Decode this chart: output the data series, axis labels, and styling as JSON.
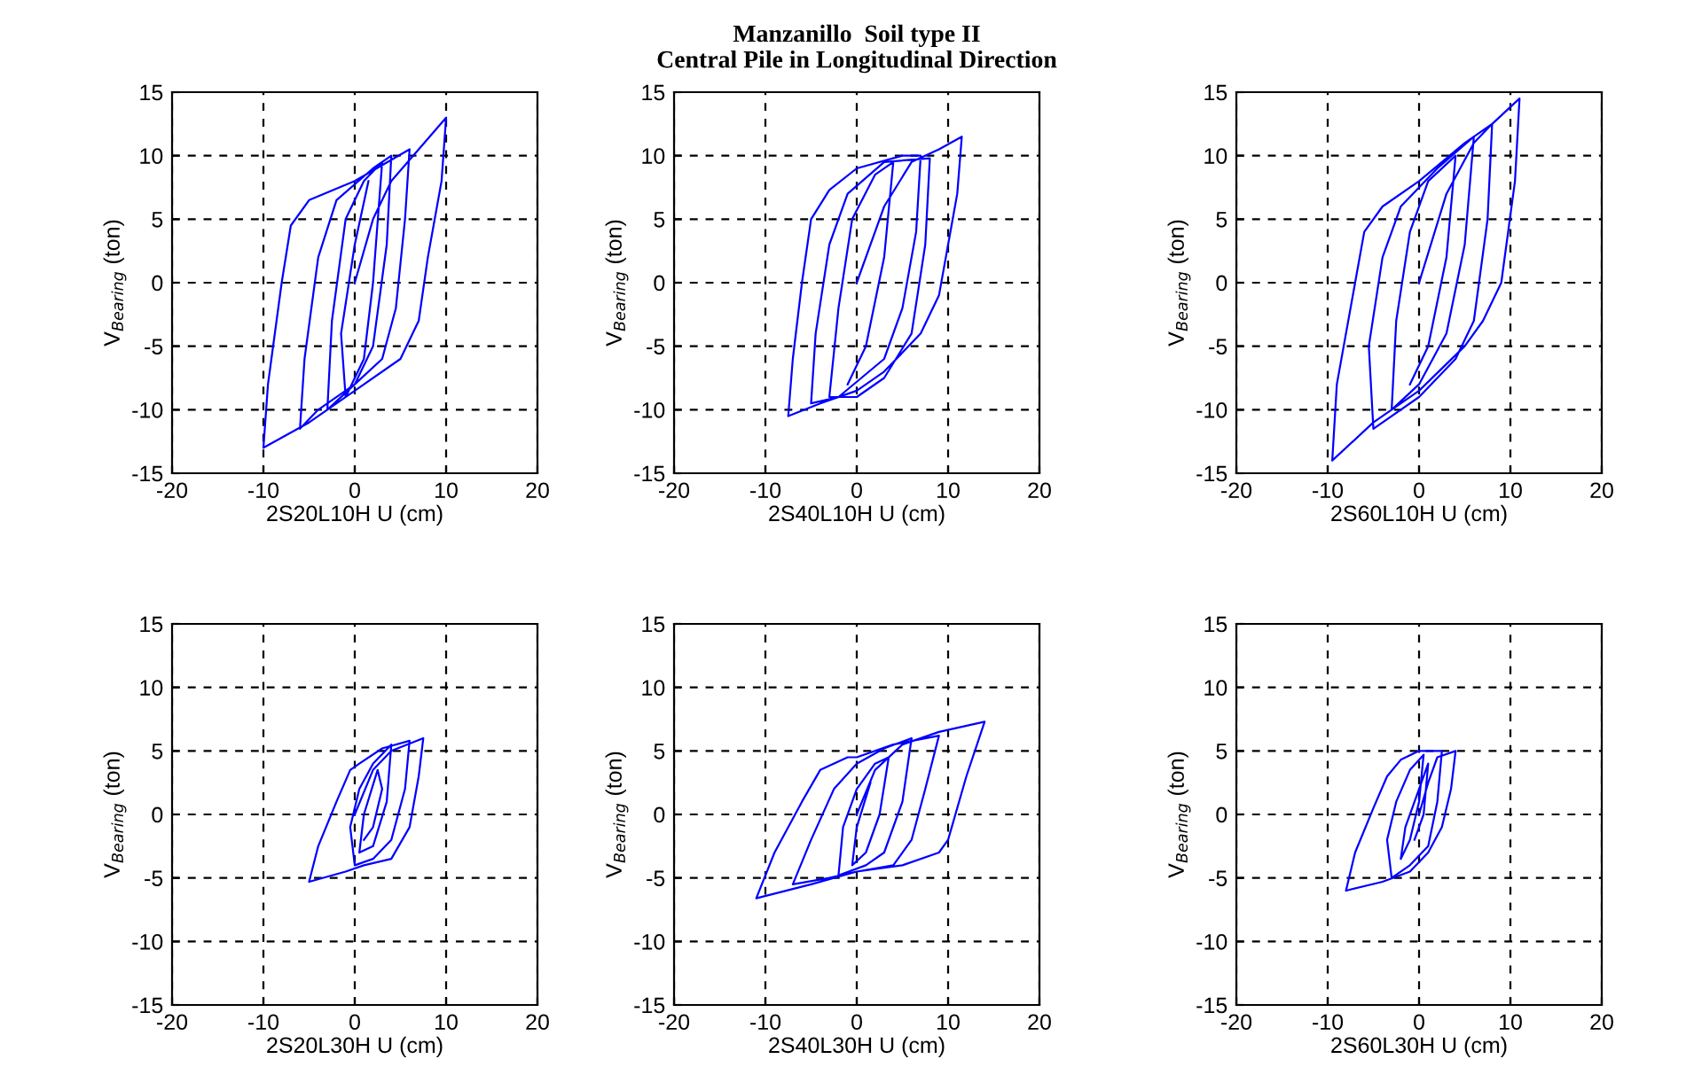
{
  "chart_data": [
    {
      "type": "line",
      "xlabel": "2S20L10H U (cm)",
      "ylabel": "V$_{Bearing}$ (ton)",
      "xlim": [
        -20,
        20
      ],
      "ylim": [
        -15,
        15
      ],
      "xticks": [
        -20,
        -10,
        0,
        10,
        20
      ],
      "yticks": [
        -15,
        -10,
        -5,
        0,
        5,
        10,
        15
      ],
      "grid": true,
      "series": [
        {
          "color": "#0000ff",
          "x": [
            0,
            2,
            4,
            7,
            10,
            9.5,
            8,
            7,
            5,
            0,
            -5,
            -10,
            -9.5,
            -8,
            -7,
            -5,
            0,
            6,
            5.5,
            4.5,
            3,
            0,
            -4,
            -6,
            -5.5,
            -4,
            -2,
            2,
            4,
            3.5,
            2,
            0,
            -3,
            -2.5,
            -1,
            1,
            3,
            2,
            1,
            -1,
            -1.5,
            0,
            1.5
          ],
          "values": [
            0,
            5,
            8,
            10.5,
            13,
            8,
            2,
            -3,
            -6,
            -8.5,
            -11,
            -13,
            -8,
            0,
            4.5,
            6.5,
            8,
            10.5,
            5,
            -2,
            -6,
            -8,
            -10,
            -11.5,
            -6,
            2,
            6.5,
            9,
            10,
            3,
            -5,
            -8,
            -10,
            -3,
            5,
            8,
            9.5,
            0,
            -6,
            -9,
            -4,
            3,
            8
          ]
        }
      ]
    },
    {
      "type": "line",
      "title": "Manzanillo  Soil type II\nCentral Pile in Longitudinal Direction",
      "xlabel": "2S40L10H U (cm)",
      "ylabel": "V$_{Bearing}$ (ton)",
      "xlim": [
        -20,
        20
      ],
      "ylim": [
        -15,
        15
      ],
      "xticks": [
        -20,
        -10,
        0,
        10,
        20
      ],
      "yticks": [
        -15,
        -10,
        -5,
        0,
        5,
        10,
        15
      ],
      "grid": true,
      "series": [
        {
          "color": "#0000ff",
          "x": [
            0,
            3,
            6,
            9,
            11.5,
            11,
            9,
            7,
            3,
            0,
            -4,
            -7.5,
            -7,
            -6,
            -5,
            -3,
            0,
            5,
            7,
            6.5,
            5,
            3,
            -2,
            -5,
            -4.5,
            -3,
            -1,
            3,
            8,
            7.5,
            6,
            3,
            0,
            -3,
            -2,
            -0.5,
            2,
            4,
            3,
            1,
            -1
          ],
          "values": [
            0,
            6,
            9.5,
            10.5,
            11.5,
            7,
            -1,
            -4,
            -7,
            -8.5,
            -9.5,
            -10.5,
            -6,
            0,
            5,
            7.3,
            9,
            10,
            10,
            4,
            -2,
            -6,
            -9,
            -9.5,
            -4,
            3,
            7,
            9.5,
            9.8,
            3,
            -4,
            -7.5,
            -9,
            -9,
            -2,
            5,
            8.5,
            9.5,
            2,
            -5,
            -8
          ]
        }
      ]
    },
    {
      "type": "line",
      "xlabel": "2S60L10H U (cm)",
      "ylabel": "V$_{Bearing}$ (ton)",
      "xlim": [
        -20,
        20
      ],
      "ylim": [
        -15,
        15
      ],
      "xticks": [
        -20,
        -10,
        0,
        10,
        20
      ],
      "yticks": [
        -15,
        -10,
        -5,
        0,
        5,
        10,
        15
      ],
      "grid": true,
      "series": [
        {
          "color": "#0000ff",
          "x": [
            0,
            3,
            6,
            8,
            11,
            10.5,
            9,
            7,
            5,
            0,
            -5,
            -9.5,
            -9,
            -7,
            -6,
            -4,
            0,
            5,
            8,
            7.5,
            6,
            4,
            0,
            -5,
            -5.5,
            -4,
            -2,
            2,
            6,
            5,
            3,
            0,
            -3,
            -2.5,
            -1,
            1,
            4,
            3,
            1,
            -1
          ],
          "values": [
            0,
            7,
            11,
            12.5,
            14.5,
            8,
            0,
            -3,
            -5,
            -8.5,
            -11,
            -14,
            -8,
            0,
            4,
            6,
            8,
            11,
            12.5,
            5,
            -3,
            -6,
            -9,
            -11.5,
            -5,
            2,
            6,
            9,
            11.5,
            3,
            -4,
            -8,
            -10,
            -3,
            4,
            8,
            10,
            2,
            -5,
            -8
          ]
        }
      ]
    },
    {
      "type": "line",
      "xlabel": "2S20L30H U (cm)",
      "ylabel": "V$_{Bearing}$ (ton)",
      "xlim": [
        -20,
        20
      ],
      "ylim": [
        -15,
        15
      ],
      "xticks": [
        -20,
        -10,
        0,
        10,
        20
      ],
      "yticks": [
        -15,
        -10,
        -5,
        0,
        5,
        10,
        15
      ],
      "grid": true,
      "series": [
        {
          "color": "#0000ff",
          "x": [
            0,
            2,
            4,
            7.5,
            7,
            6,
            4,
            1,
            -1,
            -5,
            -4,
            -2,
            -0.5,
            0.5,
            3,
            6,
            5.5,
            4,
            2,
            0,
            -0.5,
            0.5,
            2,
            4,
            3.5,
            2,
            0.5,
            1,
            2.5,
            3,
            2,
            1
          ],
          "values": [
            0,
            3.5,
            5,
            6,
            3,
            -1,
            -3.5,
            -4,
            -4.5,
            -5.3,
            -2.5,
            1,
            3.5,
            4,
            5.2,
            5.8,
            2,
            -2,
            -3.5,
            -4,
            -1,
            2,
            4,
            5.5,
            1,
            -2.5,
            -3,
            0,
            3.5,
            2,
            -1,
            -2
          ]
        }
      ]
    },
    {
      "type": "line",
      "xlabel": "2S40L30H U (cm)",
      "ylabel": "V$_{Bearing}$ (ton)",
      "xlim": [
        -20,
        20
      ],
      "ylim": [
        -15,
        15
      ],
      "xticks": [
        -20,
        -10,
        0,
        10,
        20
      ],
      "yticks": [
        -15,
        -10,
        -5,
        0,
        5,
        10,
        15
      ],
      "grid": true,
      "series": [
        {
          "color": "#0000ff",
          "x": [
            0,
            2,
            5,
            9,
            14,
            12,
            10,
            9,
            5,
            0,
            -5,
            -11,
            -9,
            -6,
            -4,
            -1,
            0,
            4,
            9,
            7.5,
            6,
            4,
            0,
            -3,
            -7,
            -5,
            -2.5,
            0,
            3,
            6,
            5,
            3,
            1,
            -2,
            -1.5,
            0,
            2,
            3.5,
            2.5,
            1,
            -0.5,
            0,
            1.5
          ],
          "values": [
            0,
            3.5,
            5.5,
            6.5,
            7.3,
            3,
            -2,
            -3,
            -4,
            -4.5,
            -5.5,
            -6.6,
            -3,
            1,
            3.5,
            4.5,
            4.5,
            5.5,
            6.2,
            2,
            -2,
            -4,
            -4.5,
            -5,
            -5.5,
            -2,
            2,
            4,
            5.2,
            6,
            1,
            -3,
            -4,
            -4.8,
            -1,
            2,
            4,
            4.5,
            0,
            -3,
            -4,
            -1,
            2.5
          ]
        }
      ]
    },
    {
      "type": "line",
      "xlabel": "2S60L30H U (cm)",
      "ylabel": "V$_{Bearing}$ (ton)",
      "xlim": [
        -20,
        20
      ],
      "ylim": [
        -15,
        15
      ],
      "xticks": [
        -20,
        -10,
        0,
        10,
        20
      ],
      "yticks": [
        -15,
        -10,
        -5,
        0,
        5,
        10,
        15
      ],
      "grid": true,
      "series": [
        {
          "color": "#0000ff",
          "x": [
            0,
            1,
            2,
            4,
            3.5,
            2.5,
            1,
            -1,
            -4,
            -8,
            -7,
            -5,
            -3.5,
            -2,
            0,
            1,
            2.5,
            2,
            1,
            -1,
            -3,
            -3.5,
            -2.5,
            -1,
            0.5,
            0,
            -1,
            -2,
            -1.5,
            0,
            1,
            0.5,
            -0.5
          ],
          "values": [
            0,
            2.5,
            4.5,
            5,
            2,
            -1,
            -3,
            -4.5,
            -5.3,
            -6,
            -3,
            0.5,
            3,
            4.3,
            5,
            5,
            5,
            1,
            -2.5,
            -4,
            -5,
            -2,
            1,
            3.5,
            4.7,
            1,
            -2,
            -3.5,
            -1,
            2,
            4,
            0,
            -2
          ]
        }
      ]
    }
  ]
}
